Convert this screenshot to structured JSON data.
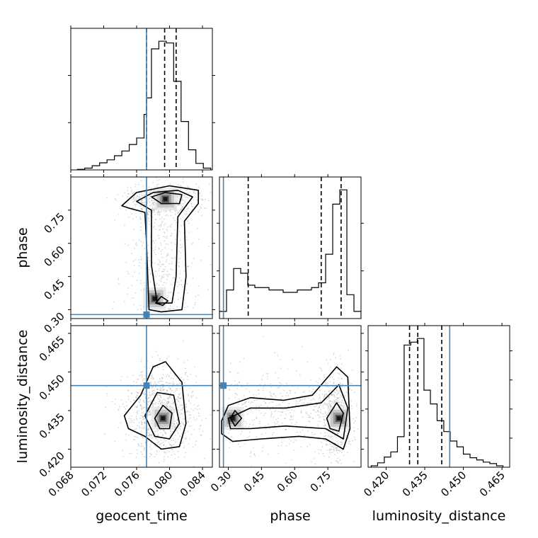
{
  "chart_data": {
    "type": "corner",
    "parameters": [
      "geocent_time",
      "phase",
      "luminosity_distance"
    ],
    "ticks": {
      "geocent_time": [
        "0.068",
        "0.072",
        "0.076",
        "0.080",
        "0.084"
      ],
      "phase": [
        "0.30",
        "0.45",
        "0.60",
        "0.75"
      ],
      "luminosity_distance": [
        "0.420",
        "0.435",
        "0.450",
        "0.465"
      ]
    },
    "ranges": {
      "geocent_time": [
        0.068,
        0.0852
      ],
      "phase": [
        0.26,
        0.9
      ],
      "luminosity_distance": [
        0.413,
        0.468
      ]
    },
    "truths": {
      "geocent_time": 0.0772,
      "phase": 0.278,
      "luminosity_distance": 0.4447
    },
    "quantiles": {
      "geocent_time": [
        0.0772,
        0.0794,
        0.0808
      ],
      "phase": [
        0.39,
        0.72,
        0.81
      ],
      "luminosity_distance": [
        0.4291,
        0.4323,
        0.4416
      ]
    },
    "histograms": {
      "geocent_time": {
        "edges": [
          0.0688,
          0.0697,
          0.0706,
          0.0715,
          0.0724,
          0.0733,
          0.0742,
          0.0751,
          0.076,
          0.0769,
          0.0772,
          0.0778,
          0.0787,
          0.0796,
          0.0805,
          0.0814,
          0.0823,
          0.0832,
          0.0841,
          0.085
        ],
        "counts": [
          1,
          3,
          7,
          12,
          17,
          24,
          32,
          43,
          54,
          94,
          122,
          205,
          218,
          215,
          150,
          82,
          34,
          11,
          3
        ]
      },
      "phase": {
        "edges": [
          0.26,
          0.292,
          0.324,
          0.356,
          0.388,
          0.42,
          0.452,
          0.484,
          0.516,
          0.548,
          0.58,
          0.612,
          0.644,
          0.676,
          0.708,
          0.74,
          0.772,
          0.804,
          0.836,
          0.868,
          0.9
        ],
        "counts": [
          3,
          12,
          21,
          19,
          14,
          13,
          13,
          12,
          12,
          11,
          11,
          12,
          12,
          13,
          15,
          27,
          48,
          54,
          10,
          3
        ]
      },
      "luminosity_distance": {
        "edges": [
          0.4142,
          0.4167,
          0.4193,
          0.4218,
          0.4244,
          0.427,
          0.4296,
          0.4321,
          0.4347,
          0.4372,
          0.4398,
          0.4424,
          0.4449,
          0.4475,
          0.45,
          0.4526,
          0.4552,
          0.4577,
          0.4603,
          0.4629,
          0.4654
        ],
        "counts": [
          2,
          6,
          14,
          21,
          42,
          168,
          172,
          177,
          106,
          87,
          64,
          49,
          36,
          28,
          18,
          13,
          10,
          7,
          5,
          2
        ]
      }
    },
    "contour_centers": {
      "geocent_time_phase": [
        [
          0.0795,
          0.8
        ],
        [
          0.0782,
          0.35
        ]
      ],
      "geocent_time_luminosity_distance": [
        [
          0.0792,
          0.432
        ]
      ],
      "phase_luminosity_distance": [
        [
          0.8,
          0.432
        ],
        [
          0.32,
          0.432
        ]
      ]
    },
    "truth_color": "#4682b4",
    "grid": true
  }
}
